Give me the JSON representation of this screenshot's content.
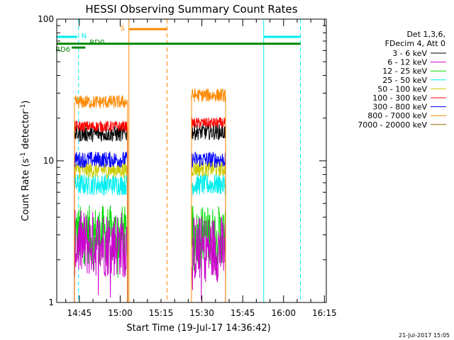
{
  "chart_data": {
    "type": "line",
    "title": "HESSI Observing Summary Count Rates",
    "xlabel": "Start Time (19-Jul-17 14:36:42)",
    "ylabel_main": "Count Rate (s",
    "ylabel_sup1": "-1",
    "ylabel_mid": " detector",
    "ylabel_sup2": "-1",
    "ylabel_end": ")",
    "yscale": "log",
    "ylim": [
      1,
      100
    ],
    "xlim_min": [
      0,
      99
    ],
    "x_tick_labels": [
      "14:45",
      "15:00",
      "15:15",
      "15:30",
      "15:45",
      "16:00",
      "16:15"
    ],
    "x_tick_minutes": [
      8.3,
      23.3,
      38.3,
      53.3,
      68.3,
      83.3,
      98.3
    ],
    "y_tick_labels": [
      "1",
      "10",
      "100"
    ],
    "y_tick_values": [
      1,
      10,
      100
    ],
    "legend_header": [
      "Det 1,3,6,",
      "FDecim 4, Att 0"
    ],
    "legend_position": "right",
    "series": [
      {
        "name": "3 - 6 keV",
        "color": "#000000",
        "seg1": 15.5,
        "seg2": 16.0,
        "jitter": 0.06
      },
      {
        "name": "6 - 12 keV",
        "color": "#cc00cc",
        "seg1": 2.6,
        "seg2": 2.4,
        "jitter": 0.25
      },
      {
        "name": "12 - 25 keV",
        "color": "#00dd00",
        "seg1": 3.0,
        "seg2": 3.0,
        "jitter": 0.22
      },
      {
        "name": "25 - 50 keV",
        "color": "#00eeee",
        "seg1": 6.8,
        "seg2": 6.8,
        "jitter": 0.08
      },
      {
        "name": "50 - 100 keV",
        "color": "#cccc00",
        "seg1": 8.6,
        "seg2": 8.8,
        "jitter": 0.06
      },
      {
        "name": "100 - 300 keV",
        "color": "#ff0000",
        "seg1": 17.5,
        "seg2": 18.5,
        "jitter": 0.04
      },
      {
        "name": "300 - 800 keV",
        "color": "#0000ff",
        "seg1": 10.2,
        "seg2": 10.2,
        "jitter": 0.06
      },
      {
        "name": "800 - 7000 keV",
        "color": "#ff8800",
        "seg1": 26.0,
        "seg2": 29.0,
        "jitter": 0.05
      },
      {
        "name": "7000 - 20000 keV",
        "color": "#996600",
        "seg1": 0,
        "seg2": 0,
        "jitter": 0
      }
    ],
    "data_segments_minutes": [
      [
        6.5,
        26.0
      ],
      [
        49.5,
        62.0
      ]
    ],
    "markers": {
      "N": {
        "label": "N",
        "color": "#00eeee",
        "y": 75,
        "segments": [
          [
            0,
            7.5
          ],
          [
            76,
            89.5
          ]
        ],
        "dashed_minutes": [
          8.0,
          89.5
        ],
        "solid_minutes": [
          0,
          76
        ]
      },
      "S": {
        "label": "S",
        "color": "#ff8800",
        "y": 85,
        "segments": [
          [
            26.5,
            40.5
          ]
        ],
        "solid_minutes": [
          26.5
        ],
        "dashed_minutes": [
          40.5
        ]
      },
      "RD0": {
        "label": "RD0",
        "color": "#008800",
        "y": 67,
        "segments": [
          [
            0,
            89.5
          ]
        ]
      },
      "RD6": {
        "label": "RD6",
        "color": "#008800",
        "y": 63,
        "segments": [
          [
            5.5,
            10.5
          ]
        ]
      }
    }
  },
  "timestamp": "21-Jul-2017 15:05"
}
